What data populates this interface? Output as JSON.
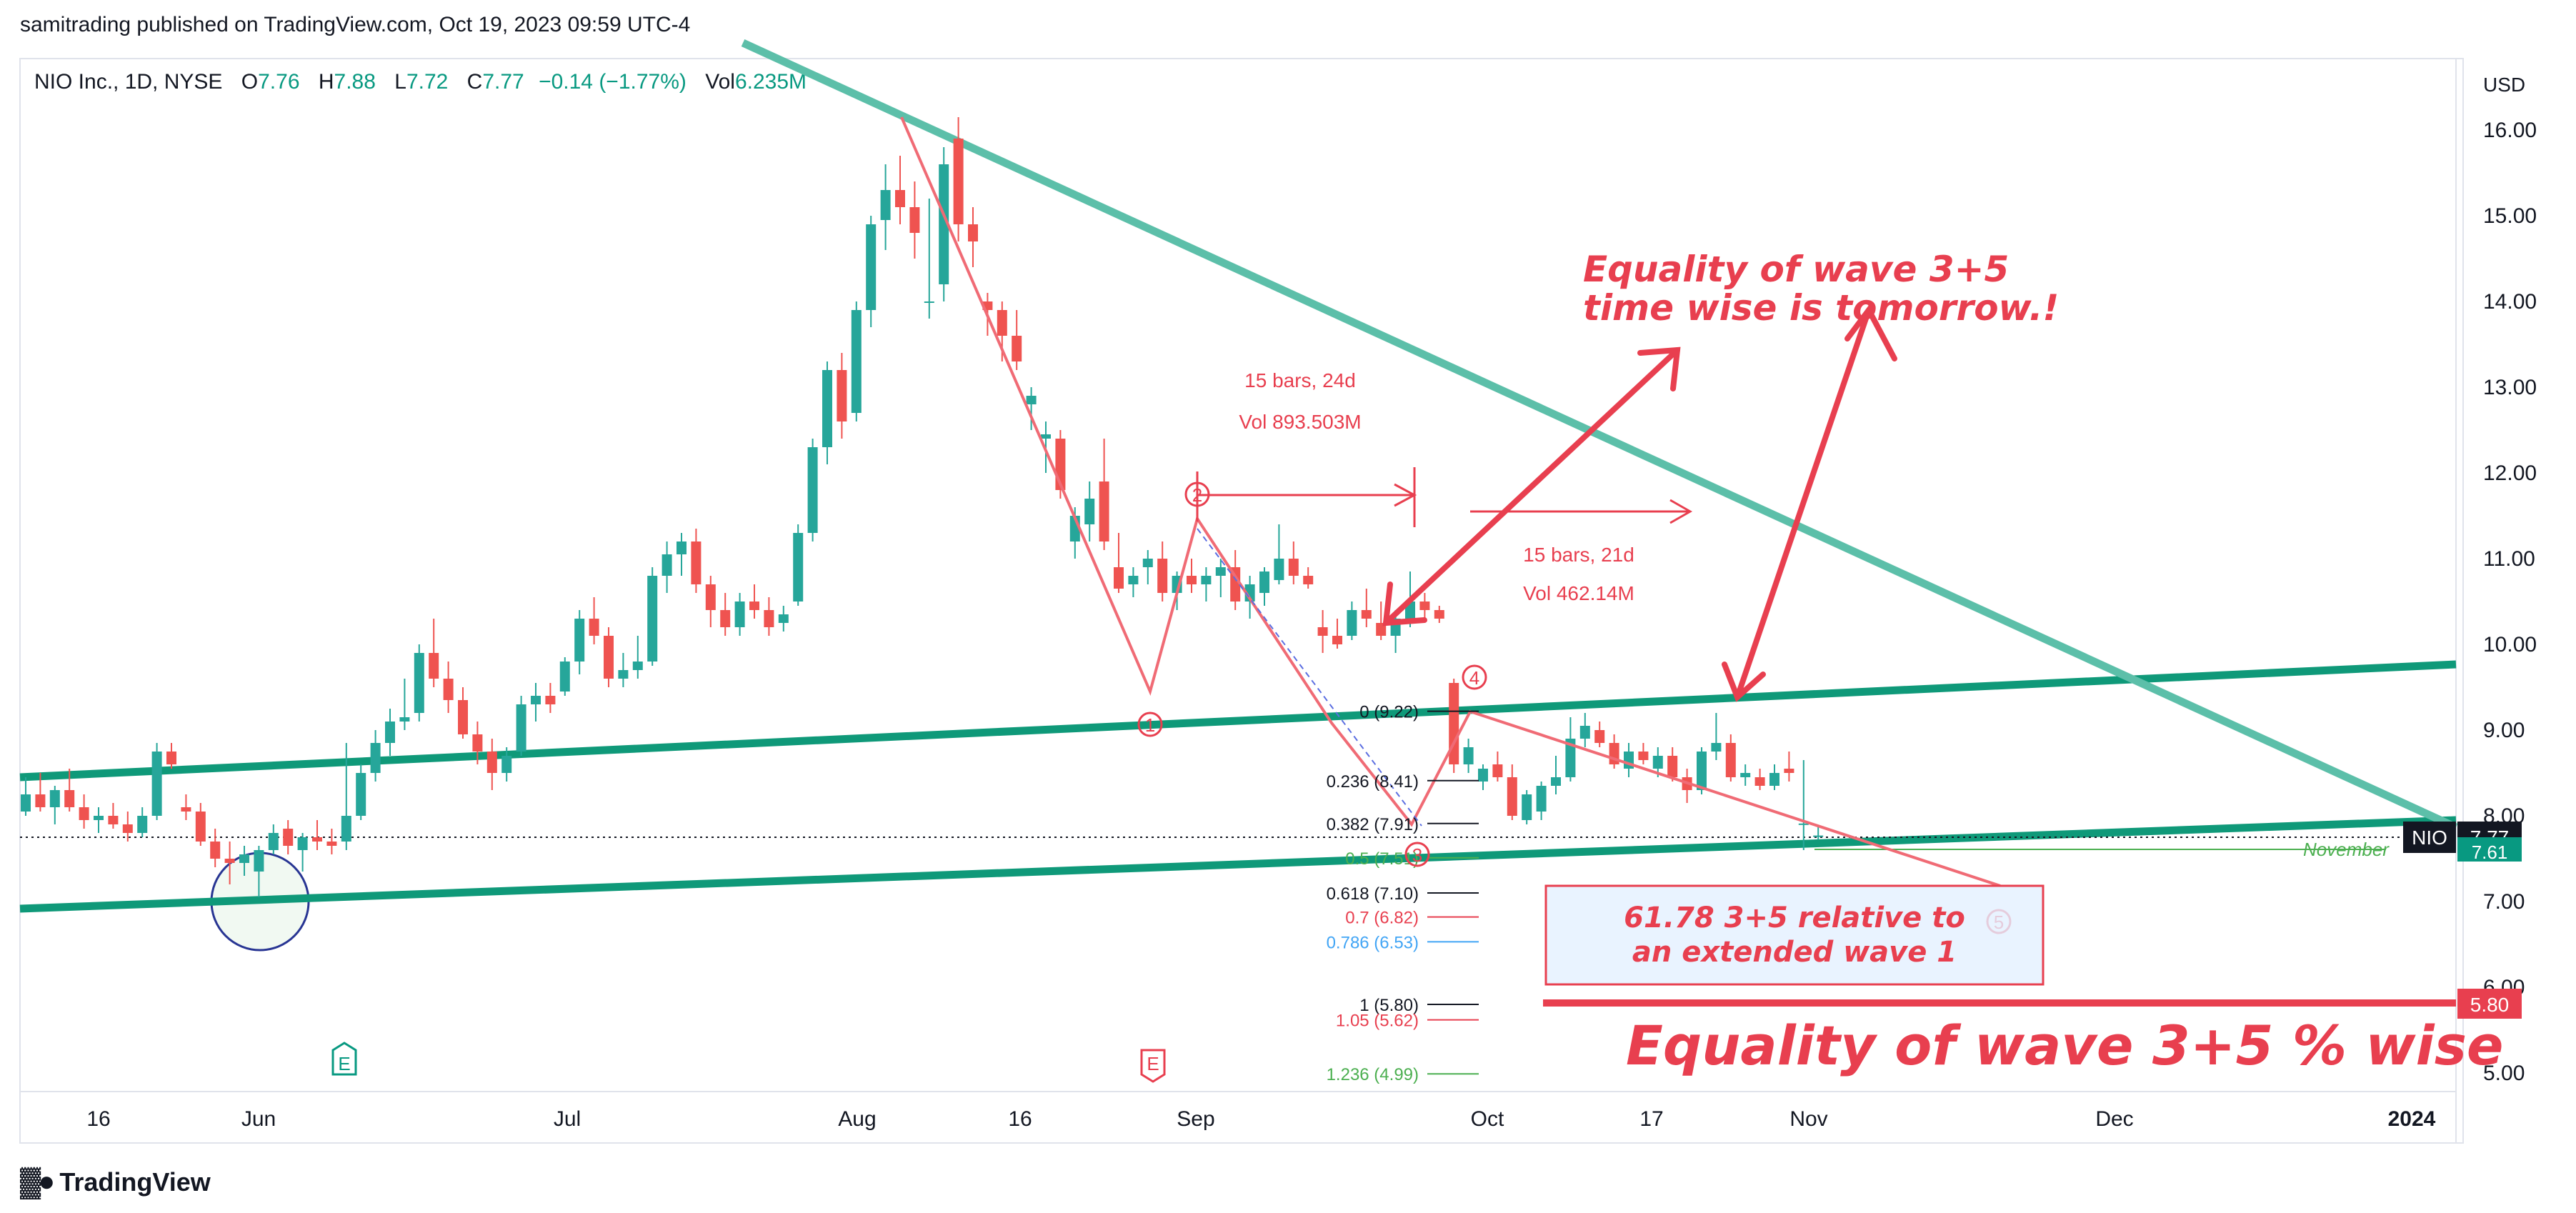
{
  "publisher_line": "samitrading published on TradingView.com, Oct 19, 2023 09:59 UTC-4",
  "legend": {
    "symbol": "NIO Inc., 1D, NYSE",
    "o_label": "O",
    "o": "7.76",
    "h_label": "H",
    "h": "7.88",
    "l_label": "L",
    "l": "7.72",
    "c_label": "C",
    "c": "7.77",
    "change": "−0.14 (−1.77%)",
    "vol_label": "Vol",
    "vol": "6.235M"
  },
  "currency": "USD",
  "brand": "TradingView",
  "colors": {
    "up": "#26a69a",
    "down": "#ef5350",
    "channel": "#0f9979",
    "trend": "#5cbfa9",
    "annot": "#e83f4f",
    "price_tag": "#131722",
    "level_tag": "#e83f4f"
  },
  "chart_data": {
    "type": "candlestick",
    "symbol": "NIO",
    "interval": "1D",
    "y_axis": {
      "min": 4.8,
      "max": 16.4,
      "ticks": [
        "16.00",
        "15.00",
        "14.00",
        "13.00",
        "12.00",
        "11.00",
        "10.00",
        "9.00",
        "8.00",
        "7.00",
        "6.00",
        "5.00"
      ]
    },
    "x_axis": {
      "ticks": [
        "16",
        "Jun",
        "Jul",
        "Aug",
        "16",
        "Sep",
        "Oct",
        "17",
        "Nov",
        "Dec",
        "2024"
      ]
    },
    "last_price": {
      "symbol": "NIO",
      "value": "7.77",
      "next_label": "7.61"
    },
    "level_tag": "5.80",
    "candles": [
      {
        "o": 8.05,
        "h": 8.45,
        "l": 8.0,
        "c": 8.25
      },
      {
        "o": 8.25,
        "h": 8.5,
        "l": 8.05,
        "c": 8.1
      },
      {
        "o": 8.1,
        "h": 8.35,
        "l": 7.9,
        "c": 8.3
      },
      {
        "o": 8.3,
        "h": 8.55,
        "l": 8.05,
        "c": 8.1
      },
      {
        "o": 8.1,
        "h": 8.25,
        "l": 7.85,
        "c": 7.95
      },
      {
        "o": 7.95,
        "h": 8.1,
        "l": 7.8,
        "c": 8.0
      },
      {
        "o": 8.0,
        "h": 8.15,
        "l": 7.85,
        "c": 7.9
      },
      {
        "o": 7.9,
        "h": 8.05,
        "l": 7.7,
        "c": 7.8
      },
      {
        "o": 7.8,
        "h": 8.1,
        "l": 7.75,
        "c": 8.0
      },
      {
        "o": 8.0,
        "h": 8.85,
        "l": 7.95,
        "c": 8.75
      },
      {
        "o": 8.75,
        "h": 8.85,
        "l": 8.55,
        "c": 8.6
      },
      {
        "o": 8.1,
        "h": 8.25,
        "l": 7.95,
        "c": 8.05
      },
      {
        "o": 8.05,
        "h": 8.15,
        "l": 7.65,
        "c": 7.7
      },
      {
        "o": 7.7,
        "h": 7.85,
        "l": 7.4,
        "c": 7.5
      },
      {
        "o": 7.5,
        "h": 7.7,
        "l": 7.2,
        "c": 7.45
      },
      {
        "o": 7.45,
        "h": 7.65,
        "l": 7.3,
        "c": 7.55
      },
      {
        "o": 7.35,
        "h": 7.65,
        "l": 7.05,
        "c": 7.6
      },
      {
        "o": 7.6,
        "h": 7.9,
        "l": 7.55,
        "c": 7.8
      },
      {
        "o": 7.85,
        "h": 7.95,
        "l": 7.55,
        "c": 7.65
      },
      {
        "o": 7.6,
        "h": 7.8,
        "l": 7.35,
        "c": 7.75
      },
      {
        "o": 7.75,
        "h": 7.95,
        "l": 7.6,
        "c": 7.7
      },
      {
        "o": 7.7,
        "h": 7.85,
        "l": 7.55,
        "c": 7.65
      },
      {
        "o": 7.7,
        "h": 8.85,
        "l": 7.6,
        "c": 8.0
      },
      {
        "o": 8.0,
        "h": 8.6,
        "l": 7.95,
        "c": 8.5
      },
      {
        "o": 8.5,
        "h": 9.0,
        "l": 8.4,
        "c": 8.85
      },
      {
        "o": 8.85,
        "h": 9.25,
        "l": 8.7,
        "c": 9.1
      },
      {
        "o": 9.1,
        "h": 9.6,
        "l": 9.0,
        "c": 9.15
      },
      {
        "o": 9.2,
        "h": 10.0,
        "l": 9.1,
        "c": 9.9
      },
      {
        "o": 9.9,
        "h": 10.3,
        "l": 9.5,
        "c": 9.6
      },
      {
        "o": 9.6,
        "h": 9.8,
        "l": 9.2,
        "c": 9.35
      },
      {
        "o": 9.35,
        "h": 9.5,
        "l": 8.9,
        "c": 8.95
      },
      {
        "o": 8.95,
        "h": 9.1,
        "l": 8.6,
        "c": 8.75
      },
      {
        "o": 8.75,
        "h": 8.9,
        "l": 8.3,
        "c": 8.5
      },
      {
        "o": 8.5,
        "h": 8.8,
        "l": 8.4,
        "c": 8.7
      },
      {
        "o": 8.75,
        "h": 9.4,
        "l": 8.7,
        "c": 9.3
      },
      {
        "o": 9.3,
        "h": 9.55,
        "l": 9.1,
        "c": 9.4
      },
      {
        "o": 9.4,
        "h": 9.55,
        "l": 9.2,
        "c": 9.3
      },
      {
        "o": 9.45,
        "h": 9.85,
        "l": 9.4,
        "c": 9.8
      },
      {
        "o": 9.8,
        "h": 10.4,
        "l": 9.65,
        "c": 10.3
      },
      {
        "o": 10.3,
        "h": 10.55,
        "l": 10.0,
        "c": 10.1
      },
      {
        "o": 10.1,
        "h": 10.2,
        "l": 9.5,
        "c": 9.6
      },
      {
        "o": 9.6,
        "h": 9.9,
        "l": 9.5,
        "c": 9.7
      },
      {
        "o": 9.7,
        "h": 10.1,
        "l": 9.6,
        "c": 9.8
      },
      {
        "o": 9.8,
        "h": 10.9,
        "l": 9.75,
        "c": 10.8
      },
      {
        "o": 10.8,
        "h": 11.2,
        "l": 10.6,
        "c": 11.05
      },
      {
        "o": 11.05,
        "h": 11.3,
        "l": 10.8,
        "c": 11.2
      },
      {
        "o": 11.2,
        "h": 11.35,
        "l": 10.6,
        "c": 10.7
      },
      {
        "o": 10.7,
        "h": 10.8,
        "l": 10.2,
        "c": 10.4
      },
      {
        "o": 10.4,
        "h": 10.6,
        "l": 10.1,
        "c": 10.2
      },
      {
        "o": 10.2,
        "h": 10.6,
        "l": 10.1,
        "c": 10.5
      },
      {
        "o": 10.5,
        "h": 10.7,
        "l": 10.3,
        "c": 10.4
      },
      {
        "o": 10.4,
        "h": 10.55,
        "l": 10.1,
        "c": 10.2
      },
      {
        "o": 10.25,
        "h": 10.45,
        "l": 10.15,
        "c": 10.35
      },
      {
        "o": 10.5,
        "h": 11.4,
        "l": 10.45,
        "c": 11.3
      },
      {
        "o": 11.3,
        "h": 12.4,
        "l": 11.2,
        "c": 12.3
      },
      {
        "o": 12.3,
        "h": 13.3,
        "l": 12.1,
        "c": 13.2
      },
      {
        "o": 13.2,
        "h": 13.4,
        "l": 12.4,
        "c": 12.6
      },
      {
        "o": 12.7,
        "h": 14.0,
        "l": 12.6,
        "c": 13.9
      },
      {
        "o": 13.9,
        "h": 15.0,
        "l": 13.7,
        "c": 14.9
      },
      {
        "o": 14.95,
        "h": 15.6,
        "l": 14.6,
        "c": 15.3
      },
      {
        "o": 15.3,
        "h": 15.7,
        "l": 14.9,
        "c": 15.1
      },
      {
        "o": 15.1,
        "h": 15.4,
        "l": 14.5,
        "c": 14.8
      },
      {
        "o": 14.0,
        "h": 15.2,
        "l": 13.8,
        "c": 14.0
      },
      {
        "o": 14.2,
        "h": 15.8,
        "l": 14.0,
        "c": 15.6
      },
      {
        "o": 15.9,
        "h": 16.15,
        "l": 14.7,
        "c": 14.9
      },
      {
        "o": 14.9,
        "h": 15.1,
        "l": 14.4,
        "c": 14.7
      },
      {
        "o": 14.0,
        "h": 14.1,
        "l": 13.6,
        "c": 13.9
      },
      {
        "o": 13.9,
        "h": 14.0,
        "l": 13.3,
        "c": 13.6
      },
      {
        "o": 13.6,
        "h": 13.9,
        "l": 13.2,
        "c": 13.3
      },
      {
        "o": 12.8,
        "h": 13.0,
        "l": 12.5,
        "c": 12.9
      },
      {
        "o": 12.4,
        "h": 12.6,
        "l": 12.0,
        "c": 12.45
      },
      {
        "o": 12.4,
        "h": 12.5,
        "l": 11.7,
        "c": 11.8
      },
      {
        "o": 11.2,
        "h": 11.6,
        "l": 11.0,
        "c": 11.5
      },
      {
        "o": 11.4,
        "h": 11.9,
        "l": 11.2,
        "c": 11.7
      },
      {
        "o": 11.9,
        "h": 12.4,
        "l": 11.1,
        "c": 11.2
      },
      {
        "o": 10.9,
        "h": 11.3,
        "l": 10.6,
        "c": 10.65
      },
      {
        "o": 10.7,
        "h": 10.9,
        "l": 10.55,
        "c": 10.8
      },
      {
        "o": 10.9,
        "h": 11.1,
        "l": 10.7,
        "c": 11.0
      },
      {
        "o": 11.0,
        "h": 11.2,
        "l": 10.5,
        "c": 10.6
      },
      {
        "o": 10.6,
        "h": 10.85,
        "l": 10.4,
        "c": 10.8
      },
      {
        "o": 10.8,
        "h": 11.0,
        "l": 10.6,
        "c": 10.7
      },
      {
        "o": 10.7,
        "h": 10.9,
        "l": 10.5,
        "c": 10.8
      },
      {
        "o": 10.8,
        "h": 11.0,
        "l": 10.55,
        "c": 10.9
      },
      {
        "o": 10.9,
        "h": 11.1,
        "l": 10.4,
        "c": 10.5
      },
      {
        "o": 10.5,
        "h": 10.8,
        "l": 10.3,
        "c": 10.7
      },
      {
        "o": 10.6,
        "h": 10.9,
        "l": 10.45,
        "c": 10.85
      },
      {
        "o": 10.75,
        "h": 11.4,
        "l": 10.7,
        "c": 11.0
      },
      {
        "o": 11.0,
        "h": 11.2,
        "l": 10.7,
        "c": 10.8
      },
      {
        "o": 10.8,
        "h": 10.9,
        "l": 10.65,
        "c": 10.7
      },
      {
        "o": 10.2,
        "h": 10.4,
        "l": 9.9,
        "c": 10.1
      },
      {
        "o": 10.1,
        "h": 10.3,
        "l": 9.95,
        "c": 10.0
      },
      {
        "o": 10.1,
        "h": 10.5,
        "l": 10.05,
        "c": 10.4
      },
      {
        "o": 10.4,
        "h": 10.65,
        "l": 10.2,
        "c": 10.3
      },
      {
        "o": 10.25,
        "h": 10.5,
        "l": 10.05,
        "c": 10.1
      },
      {
        "o": 10.1,
        "h": 10.4,
        "l": 9.9,
        "c": 10.3
      },
      {
        "o": 10.3,
        "h": 10.85,
        "l": 10.2,
        "c": 10.5
      },
      {
        "o": 10.5,
        "h": 10.6,
        "l": 10.3,
        "c": 10.4
      },
      {
        "o": 10.4,
        "h": 10.45,
        "l": 10.25,
        "c": 10.3
      },
      {
        "o": 9.55,
        "h": 9.6,
        "l": 8.5,
        "c": 8.6
      },
      {
        "o": 8.6,
        "h": 8.9,
        "l": 8.5,
        "c": 8.8
      },
      {
        "o": 8.4,
        "h": 8.6,
        "l": 8.3,
        "c": 8.55
      },
      {
        "o": 8.6,
        "h": 8.75,
        "l": 8.4,
        "c": 8.45
      },
      {
        "o": 8.45,
        "h": 8.6,
        "l": 7.95,
        "c": 8.0
      },
      {
        "o": 7.95,
        "h": 8.3,
        "l": 7.9,
        "c": 8.25
      },
      {
        "o": 8.05,
        "h": 8.4,
        "l": 7.95,
        "c": 8.35
      },
      {
        "o": 8.35,
        "h": 8.7,
        "l": 8.25,
        "c": 8.45
      },
      {
        "o": 8.45,
        "h": 9.15,
        "l": 8.4,
        "c": 8.9
      },
      {
        "o": 8.9,
        "h": 9.2,
        "l": 8.8,
        "c": 9.05
      },
      {
        "o": 9.0,
        "h": 9.1,
        "l": 8.8,
        "c": 8.85
      },
      {
        "o": 8.85,
        "h": 8.95,
        "l": 8.55,
        "c": 8.6
      },
      {
        "o": 8.55,
        "h": 8.85,
        "l": 8.45,
        "c": 8.75
      },
      {
        "o": 8.75,
        "h": 8.85,
        "l": 8.6,
        "c": 8.65
      },
      {
        "o": 8.55,
        "h": 8.8,
        "l": 8.45,
        "c": 8.7
      },
      {
        "o": 8.7,
        "h": 8.8,
        "l": 8.4,
        "c": 8.45
      },
      {
        "o": 8.45,
        "h": 8.55,
        "l": 8.15,
        "c": 8.3
      },
      {
        "o": 8.3,
        "h": 8.8,
        "l": 8.25,
        "c": 8.75
      },
      {
        "o": 8.75,
        "h": 9.2,
        "l": 8.65,
        "c": 8.85
      },
      {
        "o": 8.85,
        "h": 8.95,
        "l": 8.4,
        "c": 8.45
      },
      {
        "o": 8.45,
        "h": 8.6,
        "l": 8.35,
        "c": 8.5
      },
      {
        "o": 8.45,
        "h": 8.55,
        "l": 8.3,
        "c": 8.35
      },
      {
        "o": 8.35,
        "h": 8.6,
        "l": 8.3,
        "c": 8.5
      },
      {
        "o": 8.55,
        "h": 8.75,
        "l": 8.4,
        "c": 8.5
      },
      {
        "o": 7.91,
        "h": 8.65,
        "l": 7.6,
        "c": 7.91
      },
      {
        "o": 7.76,
        "h": 7.88,
        "l": 7.72,
        "c": 7.77
      }
    ],
    "fib_levels": [
      {
        "label": "0 (9.22)",
        "value": 9.22
      },
      {
        "label": "0.236 (8.41)",
        "value": 8.41
      },
      {
        "label": "0.382 (7.91)",
        "value": 7.91
      },
      {
        "label": "0.5 (7.51)",
        "value": 7.51
      },
      {
        "label": "0.618 (7.10)",
        "value": 7.1
      },
      {
        "label": "0.7 (6.82)",
        "value": 6.82
      },
      {
        "label": "0.786 (6.53)",
        "value": 6.53
      },
      {
        "label": "1 (5.80)",
        "value": 5.8
      },
      {
        "label": "1.05 (5.62)",
        "value": 5.62
      },
      {
        "label": "1.236 (4.99)",
        "value": 4.99
      }
    ],
    "annotations": {
      "bars_up_1": "15 bars, 24d",
      "vol_up_1": "Vol 893.503M",
      "bars_up_2": "15 bars, 21d",
      "vol_up_2": "Vol 462.14M",
      "time_equality_1": "Equality of wave 3+5",
      "time_equality_2": "time wise is tomorrow.!",
      "ext_box_1": "61.78 3+5 relative to",
      "ext_box_2": "an extended wave 1",
      "pct_equality": "Equality of wave 3+5 % wise",
      "november_label": "November",
      "wave_labels": [
        "1",
        "2",
        "3",
        "4",
        "5"
      ]
    },
    "earnings_markers": [
      "E",
      "E"
    ]
  }
}
